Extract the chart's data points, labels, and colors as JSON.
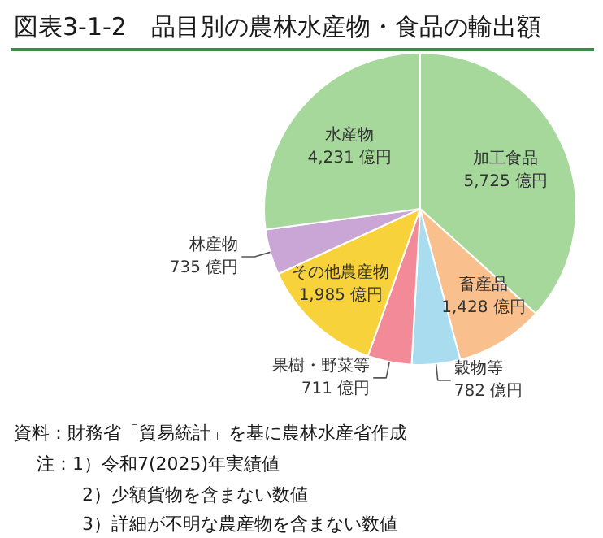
{
  "chart_data": {
    "type": "pie",
    "title": "図表3-1-2　品目別の農林水産物・食品の輸出額",
    "categories": [
      "加工食品",
      "畜産品",
      "穀物等",
      "果樹・野菜等",
      "その他農産物",
      "林産物",
      "水産物"
    ],
    "values": [
      5725,
      1428,
      782,
      711,
      1985,
      735,
      4231
    ],
    "value_labels": [
      "5,725 億円",
      "1,428 億円",
      "782 億円",
      "711 億円",
      "1,985 億円",
      "735 億円",
      "4,231 億円"
    ],
    "colors": [
      "#a6d89c",
      "#f9c08e",
      "#a9dcee",
      "#f28a98",
      "#f7d23a",
      "#c9a6d6",
      "#a6d89c"
    ],
    "annotations": [
      "資料：財務省「貿易統計」を基に農林水産省作成",
      "注：1）令和7(2025)年実績値",
      "2）少額貨物を含まない数値",
      "3）詳細が不明な農産物を含まない数値"
    ]
  }
}
